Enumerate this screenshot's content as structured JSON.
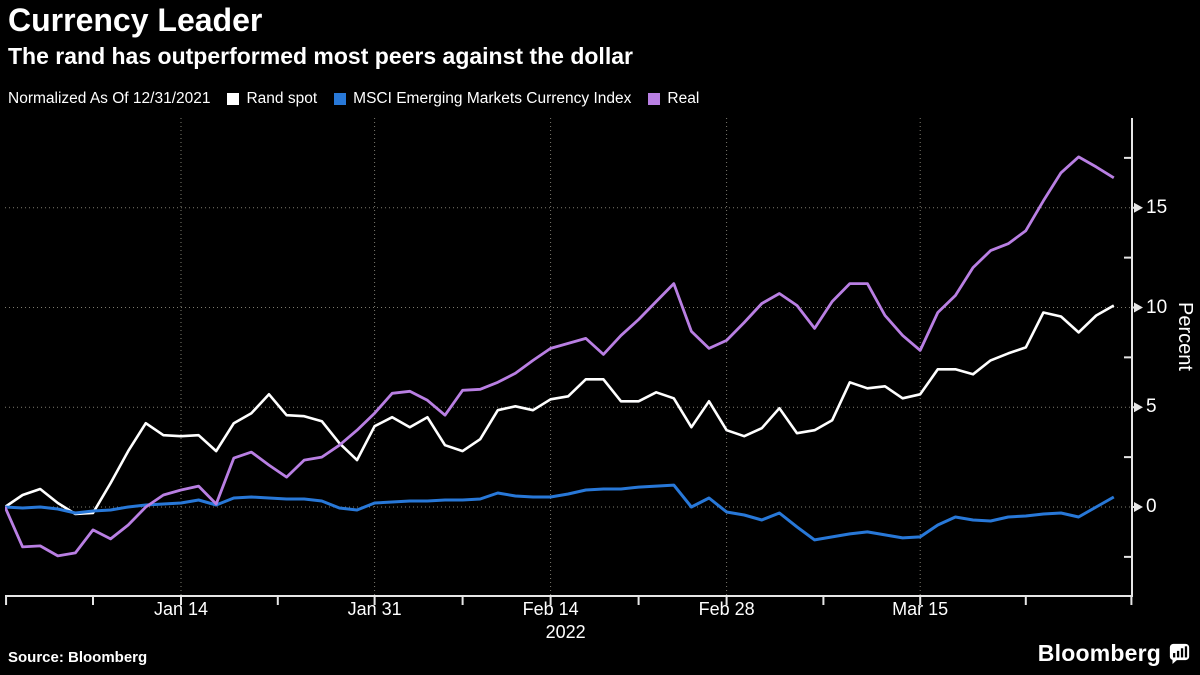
{
  "header": {
    "title": "Currency Leader",
    "subtitle": "The rand has outperformed most peers against the dollar"
  },
  "legend": {
    "note": "Normalized As Of 12/31/2021"
  },
  "footer": {
    "source": "Source: Bloomberg",
    "brand": "Bloomberg",
    "brand_icon": "bloomberg-bubble-bars-icon"
  },
  "colors": {
    "background": "#000000",
    "text": "#ffffff",
    "grid": "#7d7b70",
    "axis": "#e6e6e6",
    "rand_spot": "#ffffff",
    "msci": "#2878d8",
    "real": "#b97fe3"
  },
  "chart_data": {
    "type": "line",
    "title": "Currency Leader",
    "subtitle": "The rand has outperformed most peers against the dollar",
    "note": "Normalized As Of 12/31/2021",
    "legend_position": "top",
    "grid": {
      "style": "dotted",
      "h_values": [
        0,
        5,
        10,
        15
      ],
      "v_tick_indices": [
        10,
        21,
        31,
        41,
        52
      ]
    },
    "y_axis": {
      "label": "Percent",
      "side": "right",
      "ticks": [
        0,
        5,
        10,
        15
      ],
      "minor_ticks": [
        -2.5,
        2.5,
        7.5,
        12.5,
        17.5
      ],
      "range": [
        -4.45,
        19.5
      ]
    },
    "x_axis": {
      "ticks": [
        {
          "label": "Jan 14",
          "index": 10
        },
        {
          "label": "Jan 31",
          "index": 21
        },
        {
          "label": "Feb 14",
          "index": 31
        },
        {
          "label": "Feb 28",
          "index": 41
        },
        {
          "label": "Mar 15",
          "index": 52
        }
      ],
      "minor_tick_indices": [
        0.06,
        5,
        15.5,
        26,
        36,
        46.5,
        58,
        64
      ],
      "year_label": "2022",
      "year_index": 31
    },
    "dates": [
      "12/31",
      "01/03",
      "01/04",
      "01/05",
      "01/06",
      "01/07",
      "01/10",
      "01/11",
      "01/12",
      "01/13",
      "01/14",
      "01/17",
      "01/18",
      "01/19",
      "01/20",
      "01/21",
      "01/24",
      "01/25",
      "01/26",
      "01/27",
      "01/28",
      "01/31",
      "02/01",
      "02/02",
      "02/03",
      "02/04",
      "02/07",
      "02/08",
      "02/09",
      "02/10",
      "02/11",
      "02/14",
      "02/15",
      "02/16",
      "02/17",
      "02/18",
      "02/21",
      "02/22",
      "02/23",
      "02/24",
      "02/25",
      "02/28",
      "03/01",
      "03/02",
      "03/03",
      "03/04",
      "03/07",
      "03/08",
      "03/09",
      "03/10",
      "03/11",
      "03/14",
      "03/15",
      "03/16",
      "03/17",
      "03/18",
      "03/21",
      "03/22",
      "03/23",
      "03/24",
      "03/25",
      "03/28",
      "03/29",
      "03/30"
    ],
    "series": [
      {
        "name": "Rand spot",
        "color": "#ffffff",
        "values": [
          0,
          0.6,
          0.9,
          0.2,
          -0.35,
          -0.3,
          1.2,
          2.8,
          4.2,
          3.6,
          3.55,
          3.6,
          2.8,
          4.2,
          4.7,
          5.65,
          4.6,
          4.55,
          4.3,
          3.2,
          2.35,
          4.05,
          4.5,
          4.0,
          4.5,
          3.1,
          2.8,
          3.4,
          4.85,
          5.05,
          4.85,
          5.4,
          5.55,
          6.4,
          6.4,
          5.3,
          5.3,
          5.75,
          5.45,
          4.0,
          5.3,
          3.85,
          3.55,
          3.95,
          4.95,
          3.7,
          3.85,
          4.35,
          6.25,
          5.95,
          6.05,
          5.45,
          5.65,
          6.9,
          6.9,
          6.65,
          7.35,
          7.7,
          8.0,
          9.75,
          9.55,
          8.75,
          9.6,
          10.1
        ]
      },
      {
        "name": "MSCI Emerging Markets Currency Index",
        "color": "#2878d8",
        "values": [
          0,
          -0.05,
          0,
          -0.1,
          -0.3,
          -0.2,
          -0.15,
          0,
          0.1,
          0.15,
          0.2,
          0.35,
          0.1,
          0.45,
          0.5,
          0.45,
          0.4,
          0.4,
          0.3,
          -0.05,
          -0.15,
          0.2,
          0.25,
          0.3,
          0.3,
          0.35,
          0.35,
          0.4,
          0.7,
          0.55,
          0.5,
          0.5,
          0.65,
          0.85,
          0.9,
          0.9,
          1.0,
          1.05,
          1.1,
          0.0,
          0.45,
          -0.25,
          -0.4,
          -0.65,
          -0.3,
          -1.0,
          -1.65,
          -1.5,
          -1.35,
          -1.25,
          -1.4,
          -1.55,
          -1.5,
          -0.9,
          -0.5,
          -0.65,
          -0.7,
          -0.5,
          -0.45,
          -0.35,
          -0.3,
          -0.5,
          0.0,
          0.5
        ]
      },
      {
        "name": "Real",
        "color": "#b97fe3",
        "values": [
          0,
          -2.0,
          -1.95,
          -2.45,
          -2.3,
          -1.15,
          -1.6,
          -0.9,
          0.0,
          0.6,
          0.85,
          1.05,
          0.15,
          2.45,
          2.75,
          2.1,
          1.5,
          2.35,
          2.5,
          3.1,
          3.85,
          4.7,
          5.7,
          5.8,
          5.35,
          4.6,
          5.85,
          5.9,
          6.25,
          6.7,
          7.35,
          7.95,
          8.2,
          8.45,
          7.65,
          8.6,
          9.4,
          10.3,
          11.2,
          8.8,
          7.95,
          8.35,
          9.25,
          10.2,
          10.7,
          10.1,
          8.95,
          10.3,
          11.2,
          11.2,
          9.6,
          8.6,
          7.85,
          9.75,
          10.6,
          12.0,
          12.85,
          13.2,
          13.85,
          15.35,
          16.75,
          17.55,
          17.05,
          16.5
        ]
      }
    ]
  }
}
